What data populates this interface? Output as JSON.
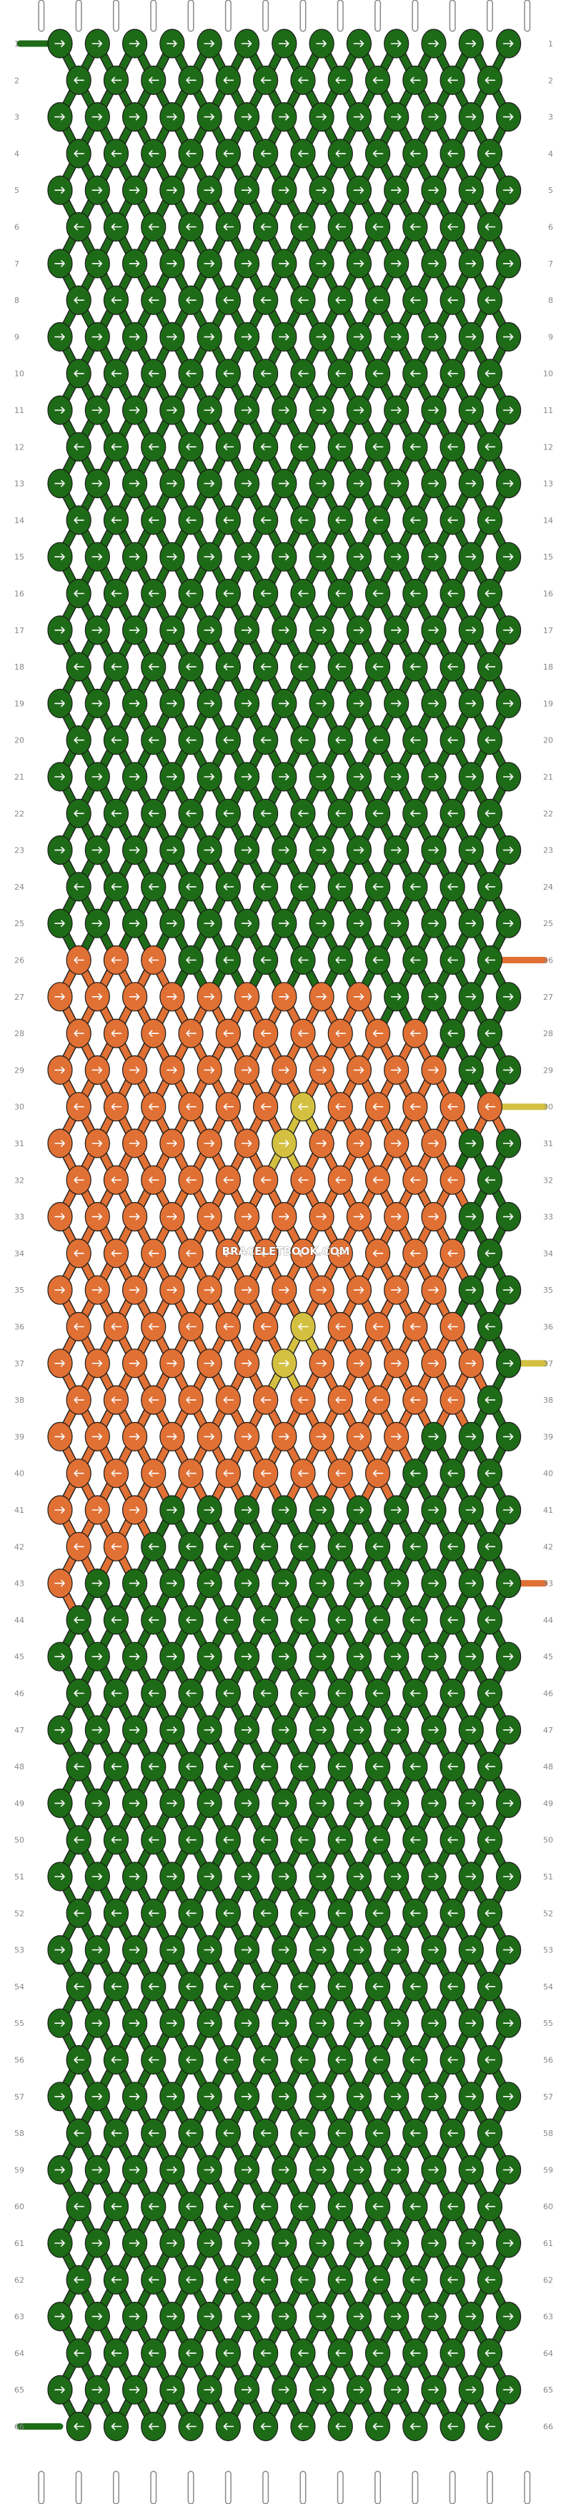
{
  "watermark": "BRACELETBOOK.COM",
  "rows": 66,
  "columns": 13,
  "strings": 14,
  "colors": {
    "green": "#1e6b17",
    "orange": "#e07034",
    "yellow": "#d4c040",
    "arrow": "#ffffff"
  },
  "icons": {
    "knot_right": "right-arrow-icon",
    "knot_left": "left-arrow-icon"
  },
  "orange_knots": [
    [
      26,
      0
    ],
    [
      26,
      1
    ],
    [
      26,
      2
    ],
    [
      27,
      0
    ],
    [
      27,
      1
    ],
    [
      27,
      2
    ],
    [
      27,
      3
    ],
    [
      27,
      4
    ],
    [
      27,
      5
    ],
    [
      27,
      6
    ],
    [
      27,
      7
    ],
    [
      27,
      8
    ],
    [
      28,
      0
    ],
    [
      28,
      1
    ],
    [
      28,
      2
    ],
    [
      28,
      3
    ],
    [
      28,
      4
    ],
    [
      28,
      5
    ],
    [
      28,
      6
    ],
    [
      28,
      7
    ],
    [
      28,
      8
    ],
    [
      28,
      9
    ],
    [
      29,
      0
    ],
    [
      29,
      1
    ],
    [
      29,
      2
    ],
    [
      29,
      3
    ],
    [
      29,
      4
    ],
    [
      29,
      5
    ],
    [
      29,
      6
    ],
    [
      29,
      7
    ],
    [
      29,
      8
    ],
    [
      29,
      9
    ],
    [
      29,
      10
    ],
    [
      30,
      0
    ],
    [
      30,
      1
    ],
    [
      30,
      2
    ],
    [
      30,
      3
    ],
    [
      30,
      4
    ],
    [
      30,
      5
    ],
    [
      30,
      6
    ],
    [
      30,
      7
    ],
    [
      30,
      8
    ],
    [
      30,
      9
    ],
    [
      30,
      10
    ],
    [
      30,
      11
    ],
    [
      31,
      0
    ],
    [
      31,
      1
    ],
    [
      31,
      2
    ],
    [
      31,
      3
    ],
    [
      31,
      4
    ],
    [
      31,
      5
    ],
    [
      31,
      6
    ],
    [
      31,
      7
    ],
    [
      31,
      8
    ],
    [
      31,
      9
    ],
    [
      31,
      10
    ],
    [
      32,
      0
    ],
    [
      32,
      1
    ],
    [
      32,
      2
    ],
    [
      32,
      3
    ],
    [
      32,
      4
    ],
    [
      32,
      5
    ],
    [
      32,
      6
    ],
    [
      32,
      7
    ],
    [
      32,
      8
    ],
    [
      32,
      9
    ],
    [
      32,
      10
    ],
    [
      33,
      0
    ],
    [
      33,
      1
    ],
    [
      33,
      2
    ],
    [
      33,
      3
    ],
    [
      33,
      4
    ],
    [
      33,
      5
    ],
    [
      33,
      6
    ],
    [
      33,
      7
    ],
    [
      33,
      8
    ],
    [
      33,
      9
    ],
    [
      33,
      10
    ],
    [
      34,
      0
    ],
    [
      34,
      1
    ],
    [
      34,
      2
    ],
    [
      34,
      3
    ],
    [
      34,
      4
    ],
    [
      34,
      5
    ],
    [
      34,
      6
    ],
    [
      34,
      7
    ],
    [
      34,
      8
    ],
    [
      34,
      9
    ],
    [
      34,
      10
    ],
    [
      35,
      0
    ],
    [
      35,
      1
    ],
    [
      35,
      2
    ],
    [
      35,
      3
    ],
    [
      35,
      4
    ],
    [
      35,
      5
    ],
    [
      35,
      6
    ],
    [
      35,
      7
    ],
    [
      35,
      8
    ],
    [
      35,
      9
    ],
    [
      35,
      10
    ],
    [
      36,
      0
    ],
    [
      36,
      1
    ],
    [
      36,
      2
    ],
    [
      36,
      3
    ],
    [
      36,
      4
    ],
    [
      36,
      5
    ],
    [
      36,
      6
    ],
    [
      36,
      7
    ],
    [
      36,
      8
    ],
    [
      36,
      9
    ],
    [
      36,
      10
    ],
    [
      37,
      0
    ],
    [
      37,
      1
    ],
    [
      37,
      2
    ],
    [
      37,
      3
    ],
    [
      37,
      4
    ],
    [
      37,
      5
    ],
    [
      37,
      6
    ],
    [
      37,
      7
    ],
    [
      37,
      8
    ],
    [
      37,
      9
    ],
    [
      37,
      10
    ],
    [
      37,
      11
    ],
    [
      38,
      0
    ],
    [
      38,
      1
    ],
    [
      38,
      2
    ],
    [
      38,
      3
    ],
    [
      38,
      4
    ],
    [
      38,
      5
    ],
    [
      38,
      6
    ],
    [
      38,
      7
    ],
    [
      38,
      8
    ],
    [
      38,
      9
    ],
    [
      38,
      10
    ],
    [
      39,
      0
    ],
    [
      39,
      1
    ],
    [
      39,
      2
    ],
    [
      39,
      3
    ],
    [
      39,
      4
    ],
    [
      39,
      5
    ],
    [
      39,
      6
    ],
    [
      39,
      7
    ],
    [
      39,
      8
    ],
    [
      39,
      9
    ],
    [
      40,
      0
    ],
    [
      40,
      1
    ],
    [
      40,
      2
    ],
    [
      40,
      3
    ],
    [
      40,
      4
    ],
    [
      40,
      5
    ],
    [
      40,
      6
    ],
    [
      40,
      7
    ],
    [
      40,
      8
    ],
    [
      41,
      0
    ],
    [
      41,
      1
    ],
    [
      41,
      2
    ],
    [
      42,
      0
    ],
    [
      42,
      1
    ],
    [
      43,
      0
    ]
  ],
  "yellow_knots": [
    [
      30,
      6
    ],
    [
      31,
      6
    ],
    [
      36,
      6
    ],
    [
      37,
      6
    ]
  ],
  "edge_strings": {
    "left": [
      {
        "row": 1,
        "color": "green"
      },
      {
        "row": 66,
        "color": "green"
      }
    ],
    "right": [
      {
        "row": 26,
        "color": "orange"
      },
      {
        "row": 30,
        "color": "yellow"
      },
      {
        "row": 37,
        "color": "yellow"
      },
      {
        "row": 43,
        "color": "orange"
      }
    ]
  }
}
